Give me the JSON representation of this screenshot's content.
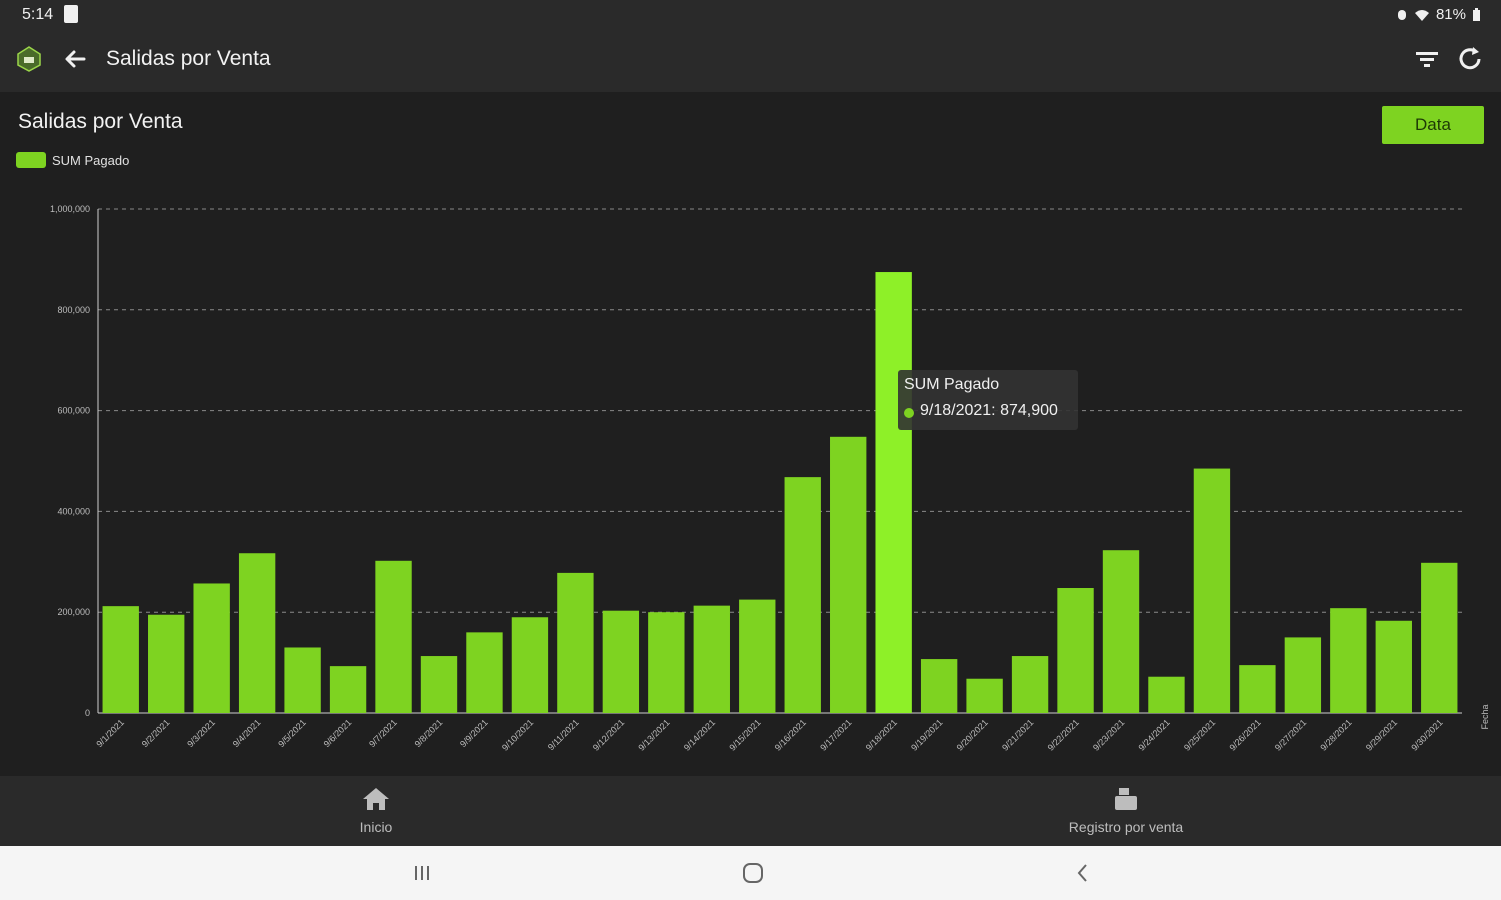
{
  "status": {
    "time": "5:14",
    "battery": "81%"
  },
  "appbar": {
    "title": "Salidas por Venta"
  },
  "card": {
    "title": "Salidas por Venta",
    "data_button": "Data",
    "legend_label": "SUM Pagado"
  },
  "tooltip": {
    "series": "SUM Pagado",
    "value_text": "9/18/2021: 874,900"
  },
  "colors": {
    "accent": "#7ed321",
    "highlight": "#8ef028",
    "background": "#1f1f1f",
    "bar_dark": "#2a2a2a"
  },
  "chart_data": {
    "type": "bar",
    "categories": [
      "9/1/2021",
      "9/2/2021",
      "9/3/2021",
      "9/4/2021",
      "9/5/2021",
      "9/6/2021",
      "9/7/2021",
      "9/8/2021",
      "9/9/2021",
      "9/10/2021",
      "9/11/2021",
      "9/12/2021",
      "9/13/2021",
      "9/14/2021",
      "9/15/2021",
      "9/16/2021",
      "9/17/2021",
      "9/18/2021",
      "9/19/2021",
      "9/20/2021",
      "9/21/2021",
      "9/22/2021",
      "9/23/2021",
      "9/24/2021",
      "9/25/2021",
      "9/26/2021",
      "9/27/2021",
      "9/28/2021",
      "9/29/2021",
      "9/30/2021"
    ],
    "series": [
      {
        "name": "SUM Pagado",
        "values": [
          212000,
          195000,
          257000,
          317000,
          130000,
          93000,
          302000,
          113000,
          160000,
          190000,
          278000,
          203000,
          200000,
          213000,
          225000,
          468000,
          548000,
          874900,
          107000,
          68000,
          113000,
          248000,
          323000,
          72000,
          485000,
          95000,
          150000,
          208000,
          183000,
          298000
        ]
      }
    ],
    "yticks": [
      "0",
      "200,000",
      "400,000",
      "600,000",
      "800,000",
      "1,000,000"
    ],
    "ylim": [
      0,
      1000000
    ],
    "xlabel": "Fecha",
    "grid": true,
    "legend": "top-left",
    "highlight_index": 17
  },
  "bottom_nav": [
    {
      "label": "Inicio",
      "icon": "home-icon"
    },
    {
      "label": "Registro por venta",
      "icon": "register-icon"
    }
  ]
}
